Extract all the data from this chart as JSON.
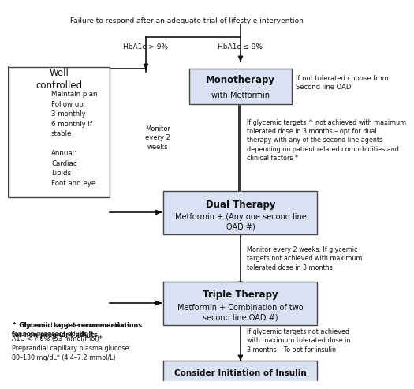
{
  "title": "Failure to respond after an adequate trial of lifestyle intervention",
  "background_color": "#ffffff",
  "box_fill_mono": "#d9e2f3",
  "box_fill_dual": "#d9e2f3",
  "box_fill_triple": "#d9e2f3",
  "box_fill_well": "#ffffff",
  "box_fill_insulin": "#d9e2f3",
  "box_border": "#444444",
  "arrow_color": "#111111",
  "text_color": "#111111",
  "mono_title": "Monotherapy",
  "mono_sub": "with Metformin",
  "dual_title": "Dual Therapy",
  "dual_sub": "Metformin + (Any one second line\nOAD #)",
  "triple_title": "Triple Therapy",
  "triple_sub": "Metformin + Combination of two\nsecond line OAD #)",
  "insulin_title": "Consider Initiation of Insulin",
  "well_title": "Well\ncontrolled",
  "well_body": "Maintain plan\nFollow up:\n3 monthly\n6 monthly if\nstable\n\nAnnual:\nCardiac\nLipids\nFoot and eye",
  "hba1c_high": "HbA1c > 9%",
  "hba1c_low": "HbA1c ≤ 9%",
  "note_mono_right": "If not tolerated choose from\nSecond line OAD",
  "note_mono_left": "Monitor\nevery 2\nweeks",
  "note_mono_desc": "If glycemic targets ^ not achieved with maximum\ntolerated dose in 3 months – opt for dual\ntherapy with any of the second line agents\ndepending on patient related comorbidities and\nclinical factors *",
  "note_dual_right": "Monitor every 2 weeks. If glycemic\ntargets not achieved with maximum\ntolerated dose in 3 months",
  "note_triple_right": "If glycemic targets not achieved\nwith maximum tolerated dose in\n3 months – To opt for insulin",
  "footnote_bold": "^ Glycemic target recommendations\nfor non-pregnant adults",
  "footnote_normal": "A1C < 7.0% (53 mmol/mol)*\nPreprandial capillary plasma glucose:\n80–130 mg/dL* (4.4–7.2 mmol/L)"
}
